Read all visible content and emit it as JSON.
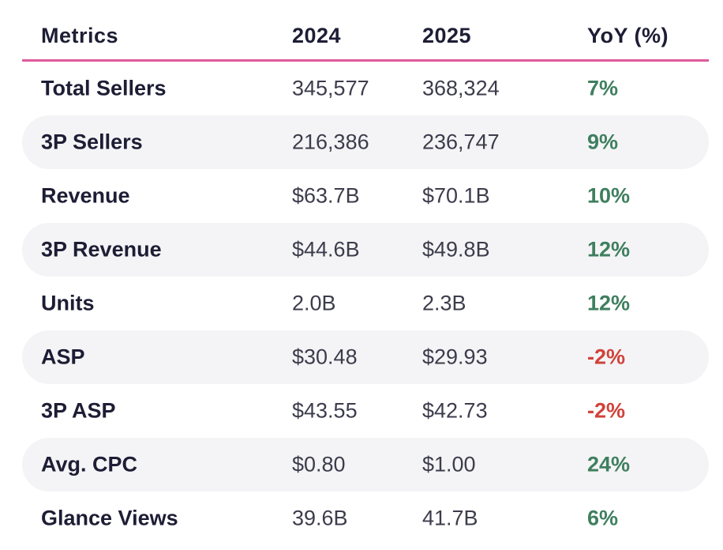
{
  "chart_data": {
    "type": "table",
    "columns": [
      "Metrics",
      "2024",
      "2025",
      "YoY (%)"
    ],
    "rows": [
      {
        "metric": "Total Sellers",
        "y2024": "345,577",
        "y2025": "368,324",
        "yoy": "7%",
        "yoy_value": 7
      },
      {
        "metric": "3P Sellers",
        "y2024": "216,386",
        "y2025": "236,747",
        "yoy": "9%",
        "yoy_value": 9
      },
      {
        "metric": "Revenue",
        "y2024": "$63.7B",
        "y2025": "$70.1B",
        "yoy": "10%",
        "yoy_value": 10
      },
      {
        "metric": "3P Revenue",
        "y2024": "$44.6B",
        "y2025": "$49.8B",
        "yoy": "12%",
        "yoy_value": 12
      },
      {
        "metric": "Units",
        "y2024": "2.0B",
        "y2025": "2.3B",
        "yoy": "12%",
        "yoy_value": 12
      },
      {
        "metric": "ASP",
        "y2024": "$30.48",
        "y2025": "$29.93",
        "yoy": "-2%",
        "yoy_value": -2
      },
      {
        "metric": "3P ASP",
        "y2024": "$43.55",
        "y2025": "$42.73",
        "yoy": "-2%",
        "yoy_value": -2
      },
      {
        "metric": "Avg. CPC",
        "y2024": "$0.80",
        "y2025": "$1.00",
        "yoy": "24%",
        "yoy_value": 24
      },
      {
        "metric": "Glance Views",
        "y2024": "39.6B",
        "y2025": "41.7B",
        "yoy": "6%",
        "yoy_value": 6
      }
    ]
  },
  "colors": {
    "header_rule": "#e05a9c",
    "positive": "#3f7f5f",
    "negative": "#d0433a",
    "row_shade": "#f4f4f6"
  }
}
